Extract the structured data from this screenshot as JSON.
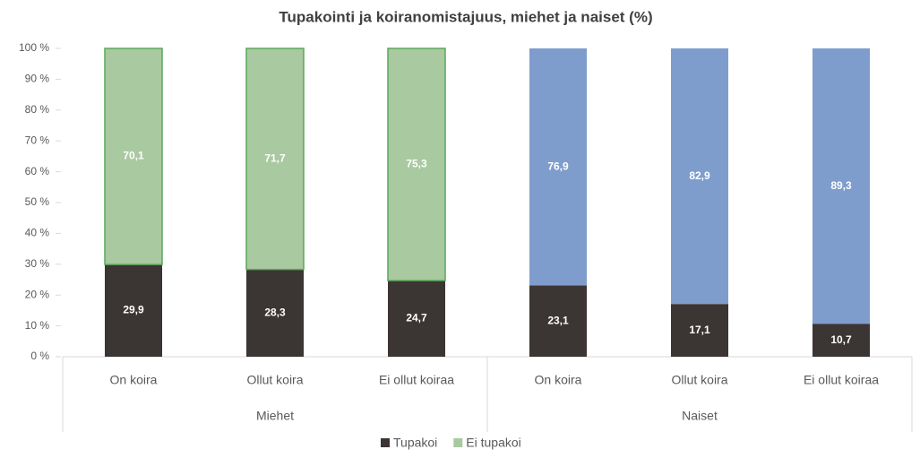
{
  "chart_data": {
    "type": "stacked_bar",
    "title": "Tupakointi ja koiranomistajuus, miehet  ja naiset (%)",
    "categories": [
      "On koira",
      "Ollut koira",
      "Ei ollut koiraa",
      "On koira",
      "Ollut koira",
      "Ei ollut koiraa"
    ],
    "groups": [
      "Miehet",
      "Naiset"
    ],
    "series": [
      {
        "name": "Tupakoi",
        "color": "#3b3533",
        "colors": [
          "#3b3533",
          "#3b3533",
          "#3b3533",
          "#3b3533",
          "#3b3533",
          "#3b3533"
        ],
        "values": [
          29.9,
          28.3,
          24.7,
          23.1,
          17.1,
          10.7
        ],
        "value_labels": [
          "29,9",
          "28,3",
          "24,7",
          "23,1",
          "17,1",
          "10,7"
        ]
      },
      {
        "name": "Ei tupakoi",
        "color": "#a9c9a0",
        "colors": [
          "#a9c9a0",
          "#a9c9a0",
          "#a9c9a0",
          "#7f9dcc",
          "#7f9dcc",
          "#7f9dcc"
        ],
        "values": [
          70.1,
          71.7,
          75.3,
          76.9,
          82.9,
          89.3
        ],
        "value_labels": [
          "70,1",
          "71,7",
          "75,3",
          "76,9",
          "82,9",
          "89,3"
        ]
      }
    ],
    "ylim": [
      0,
      100
    ],
    "yticks": [
      {
        "value": 0,
        "label": "0 %"
      },
      {
        "value": 10,
        "label": "10 %"
      },
      {
        "value": 20,
        "label": "20 %"
      },
      {
        "value": 30,
        "label": "30 %"
      },
      {
        "value": 40,
        "label": "40 %"
      },
      {
        "value": 50,
        "label": "50 %"
      },
      {
        "value": 60,
        "label": "60 %"
      },
      {
        "value": 70,
        "label": "70 %"
      },
      {
        "value": 80,
        "label": "80 %"
      },
      {
        "value": 90,
        "label": "90 %"
      },
      {
        "value": 100,
        "label": "100 %"
      }
    ],
    "legend": "bottom"
  }
}
